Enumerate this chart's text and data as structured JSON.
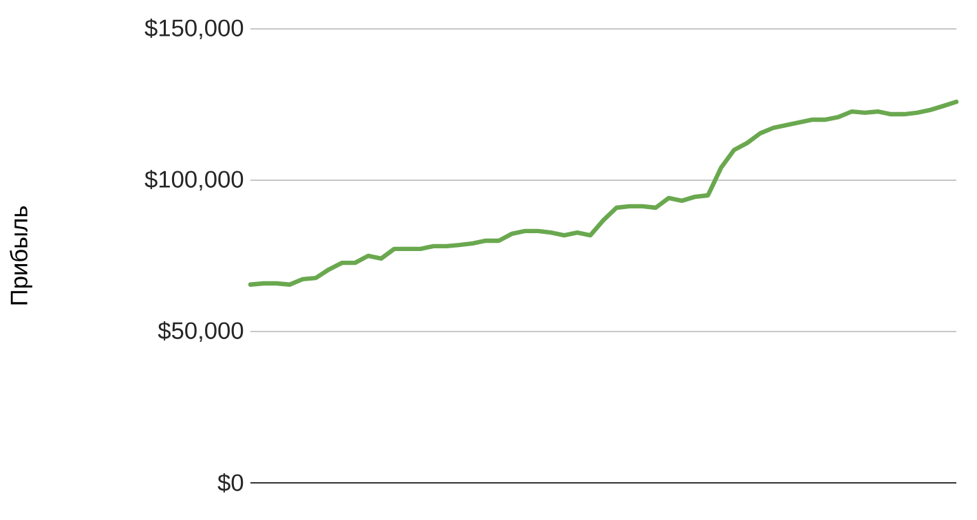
{
  "chart_data": {
    "type": "line",
    "ylabel": "Прибыль",
    "categories": [
      null,
      null,
      null,
      null,
      null,
      null,
      null,
      null,
      null,
      null,
      null,
      null,
      null,
      null,
      null,
      null,
      null,
      null,
      null,
      null,
      null,
      null,
      null,
      null,
      null,
      null,
      null,
      null,
      null,
      null,
      null,
      null,
      null,
      null,
      null,
      null,
      null,
      null,
      null,
      null,
      null,
      null,
      null,
      null,
      null,
      null,
      null,
      null,
      null,
      null,
      null,
      null,
      null,
      null,
      null
    ],
    "values": [
      65500,
      65900,
      65900,
      65500,
      67300,
      67700,
      70500,
      72700,
      72700,
      75000,
      74100,
      77300,
      77300,
      77300,
      78200,
      78200,
      78600,
      79100,
      80000,
      80000,
      82300,
      83200,
      83200,
      82700,
      81800,
      82700,
      81800,
      86800,
      90900,
      91400,
      91400,
      90900,
      94100,
      93200,
      94500,
      95000,
      104100,
      110000,
      112300,
      115500,
      117300,
      118200,
      119100,
      120000,
      120000,
      120900,
      122700,
      122300,
      122700,
      121800,
      121800,
      122300,
      123200,
      124500,
      125900
    ],
    "color": "#6aa84f",
    "line_style": "solid",
    "ylim": [
      0,
      150000
    ],
    "yticks": [
      {
        "value": 0,
        "label": "$0"
      },
      {
        "value": 50000,
        "label": "$50,000"
      },
      {
        "value": 100000,
        "label": "$100,000"
      },
      {
        "value": 150000,
        "label": "$150,000"
      }
    ],
    "grid": "y",
    "tick_labels": "y"
  }
}
